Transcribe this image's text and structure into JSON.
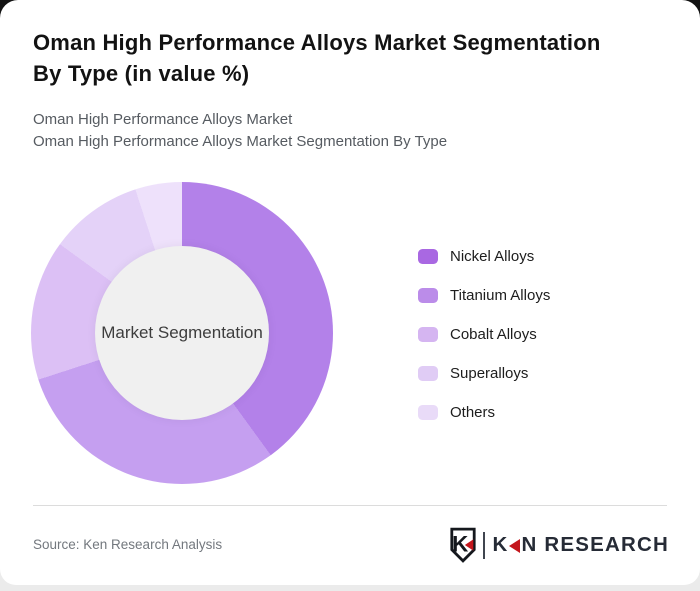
{
  "header": {
    "title_line1": "Oman High Performance Alloys Market Segmentation",
    "title_line2": "By Type (in value %)",
    "subtitle1": "Oman High Performance Alloys Market",
    "subtitle2": "Oman High Performance Alloys Market Segmentation By Type"
  },
  "chart_data": {
    "type": "pie",
    "subtype": "donut",
    "title": "Oman High Performance Alloys Market Segmentation By Type (in value %)",
    "unit": "%",
    "start_angle_deg": 0,
    "direction": "clockwise",
    "legend_position": "right",
    "center_label": "Market Segmentation",
    "center_bg": "#f0f0f0",
    "segments": [
      {
        "label": "Nickel Alloys",
        "value": 40,
        "color": "#b381e9",
        "legend_color": "#a968e2"
      },
      {
        "label": "Titanium Alloys",
        "value": 30,
        "color": "#c59ff0",
        "legend_color": "#bb8ce9"
      },
      {
        "label": "Cobalt Alloys",
        "value": 15,
        "color": "#dcc0f5",
        "legend_color": "#d5b5f1"
      },
      {
        "label": "Superalloys",
        "value": 10,
        "color": "#e4d2f8",
        "legend_color": "#e0ccf5"
      },
      {
        "label": "Others",
        "value": 5,
        "color": "#eee1fb",
        "legend_color": "#e9dbf8"
      }
    ]
  },
  "footer": {
    "source": "Source: Ken Research Analysis",
    "logo": {
      "shield_letter": "K",
      "brand_k": "K",
      "brand_rest": "N RESEARCH",
      "accent_color": "#c4161c"
    }
  }
}
